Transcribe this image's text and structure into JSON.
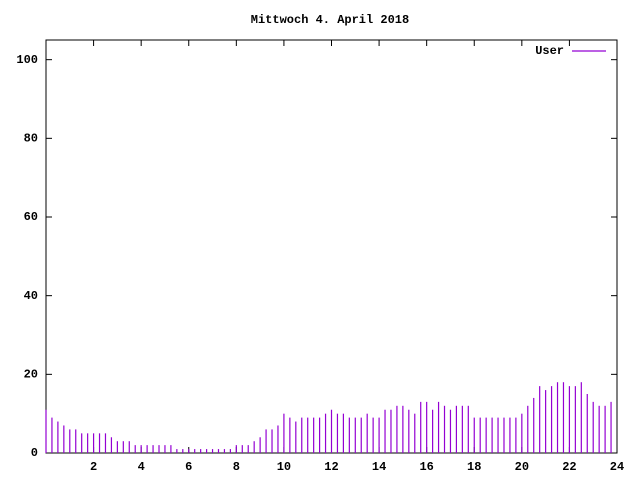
{
  "chart_data": {
    "type": "impulse",
    "title": "Mittwoch 4. April 2018",
    "x": [
      0,
      0.25,
      0.5,
      0.75,
      1,
      1.25,
      1.5,
      1.75,
      2,
      2.25,
      2.5,
      2.75,
      3,
      3.25,
      3.5,
      3.75,
      4,
      4.25,
      4.5,
      4.75,
      5,
      5.25,
      5.5,
      5.75,
      6,
      6.25,
      6.5,
      6.75,
      7,
      7.25,
      7.5,
      7.75,
      8,
      8.25,
      8.5,
      8.75,
      9,
      9.25,
      9.5,
      9.75,
      10,
      10.25,
      10.5,
      10.75,
      11,
      11.25,
      11.5,
      11.75,
      12,
      12.25,
      12.5,
      12.75,
      13,
      13.25,
      13.5,
      13.75,
      14,
      14.25,
      14.5,
      14.75,
      15,
      15.25,
      15.5,
      15.75,
      16,
      16.25,
      16.5,
      16.75,
      17,
      17.25,
      17.5,
      17.75,
      18,
      18.25,
      18.5,
      18.75,
      19,
      19.25,
      19.5,
      19.75,
      20,
      20.25,
      20.5,
      20.75,
      21,
      21.25,
      21.5,
      21.75,
      22,
      22.25,
      22.5,
      22.75,
      23,
      23.25,
      23.5,
      23.75
    ],
    "series": [
      {
        "name": "User",
        "color": "#9400d3",
        "values": [
          11,
          9,
          8,
          7,
          6,
          6,
          5,
          5,
          5,
          5,
          5,
          4,
          3,
          3,
          3,
          2,
          2,
          2,
          2,
          2,
          2,
          2,
          1,
          1,
          1,
          1,
          1,
          1,
          1,
          1,
          1,
          1,
          2,
          2,
          2,
          3,
          4,
          6,
          6,
          7,
          10,
          9,
          8,
          9,
          9,
          9,
          9,
          10,
          11,
          10,
          10,
          9,
          9,
          9,
          10,
          9,
          9,
          11,
          11,
          12,
          12,
          11,
          10,
          13,
          13,
          11,
          13,
          12,
          11,
          12,
          12,
          12,
          9,
          9,
          9,
          9,
          9,
          9,
          9,
          9,
          10,
          12,
          14,
          17,
          16,
          17,
          18,
          18,
          17,
          17,
          18,
          15,
          13,
          12,
          12,
          13
        ]
      }
    ],
    "xlim": [
      0,
      24
    ],
    "xticks": [
      2,
      4,
      6,
      8,
      10,
      12,
      14,
      16,
      18,
      20,
      22,
      24
    ],
    "ylim": [
      0,
      105
    ],
    "yticks": [
      0,
      20,
      40,
      60,
      80,
      100
    ],
    "legend": "top-right"
  }
}
